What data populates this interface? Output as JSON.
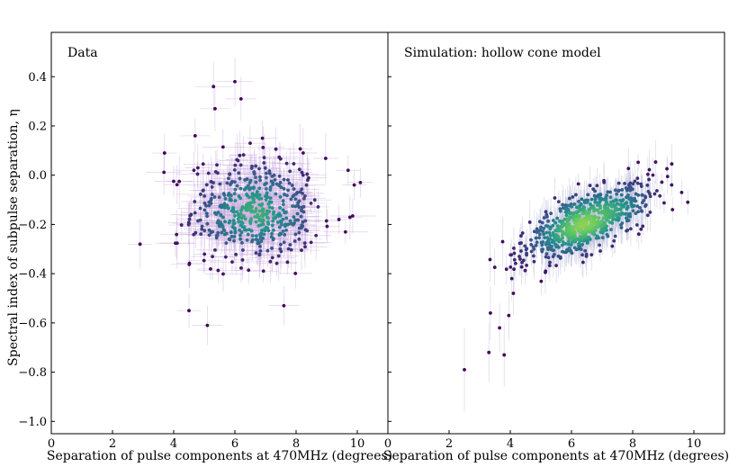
{
  "figure": {
    "y_axis_label": "Spectral index of subpulse separation, η"
  },
  "panels": [
    {
      "id": "data",
      "title": "Data",
      "x_axis_label": "Separation of pulse components at 470MHz (degrees)"
    },
    {
      "id": "sim",
      "title": "Simulation: hollow cone model",
      "x_axis_label": "Separation of pulse components at 470MHz (degrees)"
    }
  ],
  "chart_data": [
    {
      "type": "scatter",
      "title": "Data",
      "xlabel": "Separation of pulse components at 470MHz (degrees)",
      "ylabel": "Spectral index of subpulse separation, η",
      "xlim": [
        0,
        11
      ],
      "ylim": [
        -1.05,
        0.58
      ],
      "xticks": [
        0,
        2,
        4,
        6,
        8,
        10
      ],
      "yticks": [
        -1.0,
        -0.8,
        -0.6,
        -0.4,
        -0.2,
        0.0,
        0.2,
        0.4
      ],
      "colormap": [
        "#440154",
        "#3b528b",
        "#21918c",
        "#5ec962",
        "#fde725"
      ],
      "errorbar_color": "#c9a9dd",
      "points": [
        {
          "x": 5.3,
          "y": 0.36,
          "xerr": 0.6,
          "yerr": 0.1
        },
        {
          "x": 6.0,
          "y": 0.38,
          "xerr": 0.6,
          "yerr": 0.1
        },
        {
          "x": 6.2,
          "y": 0.31,
          "xerr": 0.5,
          "yerr": 0.09
        },
        {
          "x": 5.35,
          "y": 0.27,
          "xerr": 0.5,
          "yerr": 0.09
        },
        {
          "x": 2.9,
          "y": -0.28,
          "xerr": 0.4,
          "yerr": 0.1
        },
        {
          "x": 3.7,
          "y": 0.09,
          "xerr": 0.4,
          "yerr": 0.08
        },
        {
          "x": 5.1,
          "y": -0.61,
          "xerr": 0.5,
          "yerr": 0.08
        },
        {
          "x": 4.5,
          "y": -0.55,
          "xerr": 0.4,
          "yerr": 0.07
        },
        {
          "x": 7.6,
          "y": -0.53,
          "xerr": 0.5,
          "yerr": 0.08
        },
        {
          "x": 9.9,
          "y": -0.04,
          "xerr": 0.4,
          "yerr": 0.06
        },
        {
          "x": 9.7,
          "y": 0.02,
          "xerr": 0.4,
          "yerr": 0.06
        },
        {
          "x": 9.4,
          "y": -0.18,
          "xerr": 0.4,
          "yerr": 0.06
        },
        {
          "x": 10.1,
          "y": -0.03,
          "xerr": 0.4,
          "yerr": 0.06
        },
        {
          "x": 4.7,
          "y": 0.16,
          "xerr": 0.5,
          "yerr": 0.07
        },
        {
          "x": 6.5,
          "y": 0.13,
          "xerr": 0.5,
          "yerr": 0.07
        },
        {
          "x": 6.9,
          "y": 0.15,
          "xerr": 0.5,
          "yerr": 0.07
        }
      ],
      "cluster": {
        "n": 520,
        "x_mean": 6.7,
        "x_sd": 1.05,
        "y_mean": -0.15,
        "y_sd": 0.11,
        "corr": 0.0,
        "xerr": 0.55,
        "yerr": 0.07
      }
    },
    {
      "type": "scatter",
      "title": "Simulation: hollow cone model",
      "xlabel": "Separation of pulse components at 470MHz (degrees)",
      "xlim": [
        0,
        11
      ],
      "ylim": [
        -1.05,
        0.58
      ],
      "xticks": [
        0,
        2,
        4,
        6,
        8,
        10
      ],
      "yticks": [
        -1.0,
        -0.8,
        -0.6,
        -0.4,
        -0.2,
        0.0,
        0.2,
        0.4
      ],
      "colormap": [
        "#440154",
        "#3b528b",
        "#21918c",
        "#5ec962",
        "#fde725"
      ],
      "errorbar_color": "#b7b9d8",
      "points": [
        {
          "x": 2.5,
          "y": -0.79,
          "xerr": 0,
          "yerr": 0.17
        },
        {
          "x": 3.3,
          "y": -0.72,
          "xerr": 0,
          "yerr": 0.12
        },
        {
          "x": 3.35,
          "y": -0.56,
          "xerr": 0,
          "yerr": 0.11
        },
        {
          "x": 3.8,
          "y": -0.73,
          "xerr": 0,
          "yerr": 0.13
        },
        {
          "x": 3.65,
          "y": -0.62,
          "xerr": 0,
          "yerr": 0.1
        },
        {
          "x": 3.75,
          "y": -0.27,
          "xerr": 0,
          "yerr": 0.1
        },
        {
          "x": 3.95,
          "y": -0.57,
          "xerr": 0,
          "yerr": 0.1
        },
        {
          "x": 4.1,
          "y": -0.48,
          "xerr": 0,
          "yerr": 0.09
        },
        {
          "x": 4.05,
          "y": -0.42,
          "xerr": 0,
          "yerr": 0.09
        },
        {
          "x": 9.8,
          "y": -0.11,
          "xerr": 0,
          "yerr": 0.05
        },
        {
          "x": 9.6,
          "y": -0.07,
          "xerr": 0,
          "yerr": 0.05
        },
        {
          "x": 9.3,
          "y": -0.14,
          "xerr": 0,
          "yerr": 0.05
        }
      ],
      "cluster": {
        "n": 720,
        "x_mean": 6.5,
        "x_sd": 1.05,
        "y_mean": -0.19,
        "y_sd": 0.08,
        "corr": 0.72,
        "xerr": 0,
        "yerr": 0.06
      }
    }
  ]
}
